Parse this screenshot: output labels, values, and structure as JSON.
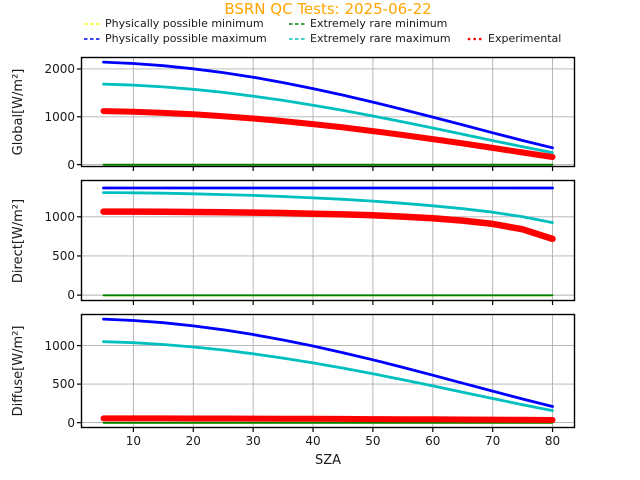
{
  "title": "BSRN QC Tests: 2025-06-22",
  "title_color": "#FFA500",
  "xlabel": "SZA",
  "legend": {
    "position": "upper-center-below-title",
    "items": [
      {
        "label": "Physically possible minimum",
        "color": "#FFFF00",
        "style": "dashed"
      },
      {
        "label": "Extremely rare minimum",
        "color": "#008000",
        "style": "dashed"
      },
      {
        "label": "Physically possible maximum",
        "color": "#0000FF",
        "style": "dashed"
      },
      {
        "label": "Extremely rare maximum",
        "color": "#00BFBF",
        "style": "dashed"
      },
      {
        "label": "Experimental",
        "color": "#FF0000",
        "style": "dotted"
      }
    ]
  },
  "chart_data": [
    {
      "type": "line",
      "ylabel": "Global[W/m²]",
      "xlabel": "SZA",
      "grid": true,
      "x": [
        5,
        10,
        15,
        20,
        25,
        30,
        35,
        40,
        45,
        50,
        55,
        60,
        65,
        70,
        75,
        80
      ],
      "xlim": [
        1.25,
        83.75
      ],
      "ylim": [
        -50,
        2250
      ],
      "xticks": [
        10,
        20,
        30,
        40,
        50,
        60,
        70,
        80
      ],
      "yticks": [
        0,
        1000,
        2000
      ],
      "series": [
        {
          "name": "Physically possible minimum",
          "color": "#FFFF00",
          "width": 1.8,
          "values": [
            -4,
            -4,
            -4,
            -4,
            -4,
            -4,
            -4,
            -4,
            -4,
            -4,
            -4,
            -4,
            -4,
            -4,
            -4,
            -4
          ]
        },
        {
          "name": "Extremely rare minimum",
          "color": "#008000",
          "width": 1.8,
          "values": [
            -2,
            -2,
            -2,
            -2,
            -2,
            -2,
            -2,
            -2,
            -2,
            -2,
            -2,
            -2,
            -2,
            -2,
            -2,
            -2
          ]
        },
        {
          "name": "Extremely rare maximum",
          "color": "#00BFBF",
          "width": 2.8,
          "values": [
            1684,
            1662,
            1625,
            1574,
            1509,
            1431,
            1342,
            1242,
            1133,
            1016,
            892,
            765,
            634,
            503,
            374,
            251
          ]
        },
        {
          "name": "Physically possible maximum",
          "color": "#0000FF",
          "width": 2.8,
          "values": [
            2143,
            2115,
            2068,
            2004,
            1924,
            1827,
            1715,
            1590,
            1454,
            1307,
            1153,
            993,
            830,
            666,
            505,
            351
          ]
        },
        {
          "name": "Experimental",
          "color": "#FF0000",
          "width": 6,
          "marker": "dots",
          "values": [
            1118,
            1104,
            1082,
            1051,
            1012,
            964,
            909,
            846,
            777,
            701,
            620,
            533,
            443,
            350,
            254,
            159
          ]
        }
      ]
    },
    {
      "type": "line",
      "ylabel": "Direct[W/m²]",
      "xlabel": "SZA",
      "grid": true,
      "x": [
        5,
        10,
        15,
        20,
        25,
        30,
        35,
        40,
        45,
        50,
        55,
        60,
        65,
        70,
        75,
        80
      ],
      "xlim": [
        1.25,
        83.75
      ],
      "ylim": [
        -75,
        1470
      ],
      "xticks": [
        10,
        20,
        30,
        40,
        50,
        60,
        70,
        80
      ],
      "yticks": [
        0,
        500,
        1000
      ],
      "series": [
        {
          "name": "Physically possible minimum",
          "color": "#FFFF00",
          "width": 1.8,
          "values": [
            -4,
            -4,
            -4,
            -4,
            -4,
            -4,
            -4,
            -4,
            -4,
            -4,
            -4,
            -4,
            -4,
            -4,
            -4,
            -4
          ]
        },
        {
          "name": "Extremely rare minimum",
          "color": "#008000",
          "width": 1.8,
          "values": [
            -2,
            -2,
            -2,
            -2,
            -2,
            -2,
            -2,
            -2,
            -2,
            -2,
            -2,
            -2,
            -2,
            -2,
            -2,
            -2
          ]
        },
        {
          "name": "Extremely rare maximum",
          "color": "#00BFBF",
          "width": 2.8,
          "values": [
            1309,
            1306,
            1301,
            1294,
            1284,
            1273,
            1259,
            1242,
            1223,
            1200,
            1173,
            1141,
            1104,
            1059,
            1002,
            926
          ]
        },
        {
          "name": "Physically possible maximum",
          "color": "#0000FF",
          "width": 2.8,
          "values": [
            1368,
            1368,
            1368,
            1368,
            1368,
            1368,
            1368,
            1368,
            1368,
            1368,
            1368,
            1368,
            1368,
            1368,
            1368,
            1368
          ]
        },
        {
          "name": "Experimental",
          "color": "#FF0000",
          "width": 6.5,
          "marker": "dots",
          "values": [
            1067,
            1066,
            1064,
            1062,
            1058,
            1054,
            1048,
            1040,
            1031,
            1019,
            1003,
            982,
            952,
            909,
            841,
            718
          ]
        }
      ]
    },
    {
      "type": "line",
      "ylabel": "Diffuse[W/m²]",
      "xlabel": "SZA",
      "grid": true,
      "x": [
        5,
        10,
        15,
        20,
        25,
        30,
        35,
        40,
        45,
        50,
        55,
        60,
        65,
        70,
        75,
        80
      ],
      "xlim": [
        1.25,
        83.75
      ],
      "ylim": [
        -70,
        1410
      ],
      "xticks": [
        10,
        20,
        30,
        40,
        50,
        60,
        70,
        80
      ],
      "yticks": [
        0,
        500,
        1000
      ],
      "series": [
        {
          "name": "Physically possible minimum",
          "color": "#FFFF00",
          "width": 1.8,
          "values": [
            -4,
            -4,
            -4,
            -4,
            -4,
            -4,
            -4,
            -4,
            -4,
            -4,
            -4,
            -4,
            -4,
            -4,
            -4,
            -4
          ]
        },
        {
          "name": "Extremely rare minimum",
          "color": "#008000",
          "width": 1.8,
          "values": [
            -2,
            -2,
            -2,
            -2,
            -2,
            -2,
            -2,
            -2,
            -2,
            -2,
            -2,
            -2,
            -2,
            -2,
            -2,
            -2
          ]
        },
        {
          "name": "Extremely rare maximum",
          "color": "#00BFBF",
          "width": 2.8,
          "values": [
            1051,
            1037,
            1014,
            982,
            942,
            893,
            838,
            775,
            707,
            634,
            557,
            477,
            395,
            313,
            233,
            156
          ]
        },
        {
          "name": "Physically possible maximum",
          "color": "#0000FF",
          "width": 2.8,
          "values": [
            1344,
            1326,
            1297,
            1256,
            1205,
            1144,
            1073,
            994,
            907,
            815,
            717,
            616,
            512,
            409,
            307,
            209
          ]
        },
        {
          "name": "Experimental",
          "color": "#FF0000",
          "width": 6,
          "marker": "dots",
          "values": [
            55,
            55,
            54,
            53,
            53,
            52,
            50,
            49,
            48,
            46,
            44,
            43,
            41,
            39,
            36,
            34
          ]
        }
      ]
    }
  ]
}
